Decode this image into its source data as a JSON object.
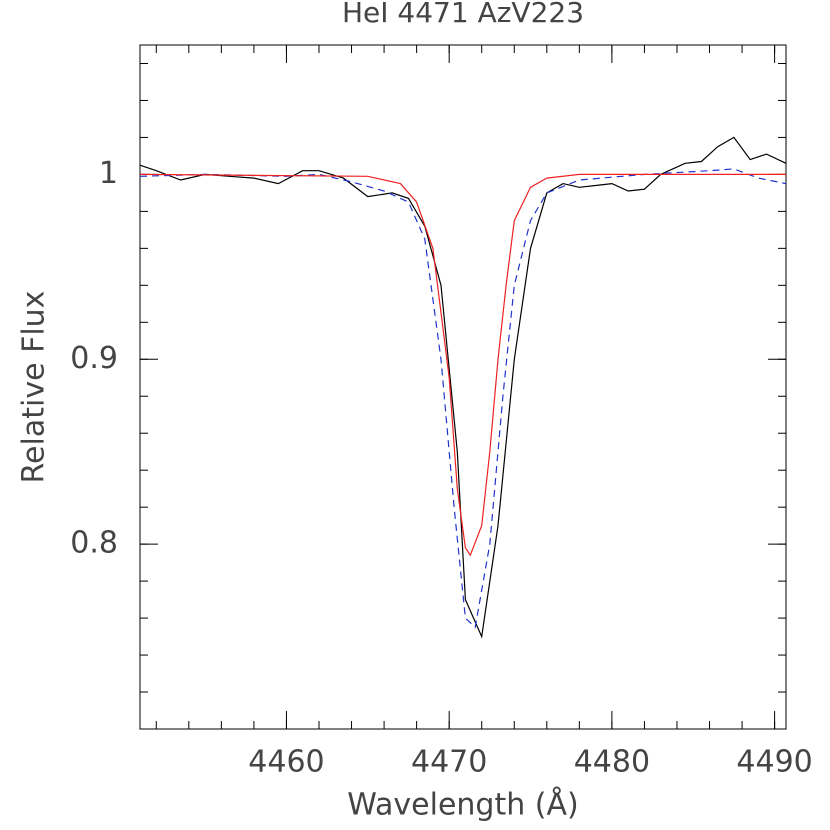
{
  "chart_data": {
    "type": "line",
    "title": "HeI 4471 AzV223",
    "xlabel": "Wavelength (Å)",
    "ylabel": "Relative Flux",
    "xlim": [
      4451,
      4490.7
    ],
    "ylim": [
      0.7,
      1.07
    ],
    "xticks": [
      4460,
      4470,
      4480,
      4490
    ],
    "yticks": [
      0.8,
      0.9,
      1
    ],
    "series": [
      {
        "color": "#000000",
        "dash": false,
        "x": [
          4451,
          4452,
          4453.5,
          4455,
          4456.5,
          4458,
          4459.5,
          4461,
          4462,
          4463.5,
          4465,
          4466.5,
          4467.5,
          4468.5,
          4469.5,
          4470.5,
          4471,
          4472,
          4473,
          4474,
          4475,
          4476,
          4477,
          4478,
          4479,
          4480,
          4481,
          4482,
          4483,
          4484.5,
          4485.5,
          4486.5,
          4487.5,
          4488.5,
          4489.5,
          4490.7
        ],
        "values": [
          1.005,
          1.002,
          0.997,
          1.0,
          0.999,
          0.998,
          0.995,
          1.002,
          1.002,
          0.998,
          0.988,
          0.99,
          0.987,
          0.972,
          0.94,
          0.85,
          0.77,
          0.75,
          0.81,
          0.9,
          0.96,
          0.99,
          0.995,
          0.993,
          0.994,
          0.995,
          0.991,
          0.992,
          1.0,
          1.006,
          1.007,
          1.015,
          1.02,
          1.008,
          1.011,
          1.006
        ]
      },
      {
        "color": "#2233cc",
        "dash": true,
        "x": [
          4451,
          4455,
          4460,
          4462,
          4464,
          4466,
          4467.5,
          4468.5,
          4469.5,
          4470.3,
          4471,
          4471.6,
          4472.5,
          4473.3,
          4474,
          4475,
          4476,
          4478,
          4482,
          4486,
          4487.5,
          4489,
          4490.7
        ],
        "values": [
          0.999,
          1.0,
          0.999,
          1.0,
          0.996,
          0.991,
          0.985,
          0.965,
          0.9,
          0.82,
          0.76,
          0.755,
          0.8,
          0.88,
          0.94,
          0.975,
          0.99,
          0.997,
          1.0,
          1.002,
          1.003,
          0.998,
          0.995
        ]
      },
      {
        "color": "#ee2222",
        "dash": false,
        "x": [
          4451,
          4465,
          4467,
          4468,
          4469,
          4470,
          4470.5,
          4471,
          4471.3,
          4472,
          4472.5,
          4473,
          4473.5,
          4474,
          4475,
          4476,
          4478,
          4490.7
        ],
        "values": [
          1.0,
          0.999,
          0.995,
          0.985,
          0.96,
          0.89,
          0.83,
          0.798,
          0.794,
          0.81,
          0.85,
          0.9,
          0.94,
          0.975,
          0.993,
          0.998,
          1.0,
          1.0
        ]
      }
    ]
  }
}
